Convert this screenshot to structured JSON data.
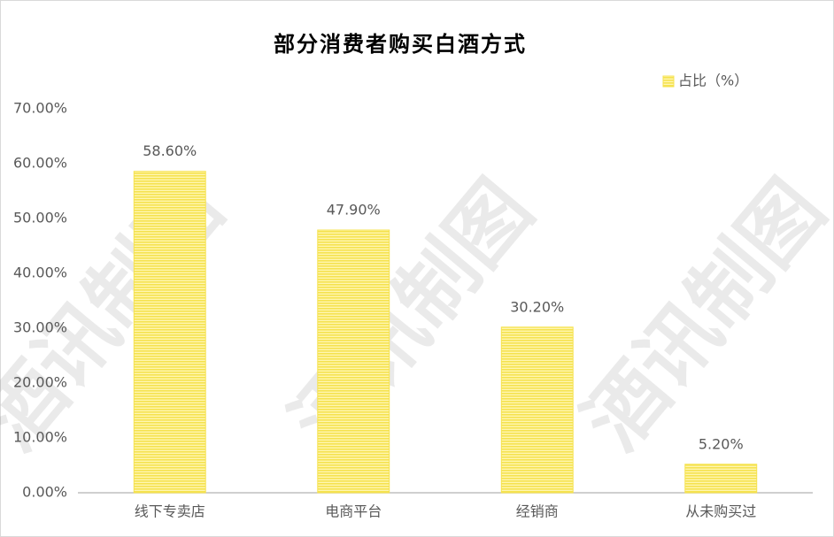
{
  "chart_data": {
    "type": "bar",
    "title": "部分消费者购买白酒方式",
    "categories": [
      "线下专卖店",
      "电商平台",
      "经销商",
      "从未购买过"
    ],
    "series": [
      {
        "name": "占比（%）",
        "color": "#f5e24f",
        "values": [
          58.6,
          47.9,
          30.2,
          5.2
        ],
        "value_labels": [
          "58.60%",
          "47.90%",
          "30.20%",
          "5.20%"
        ]
      }
    ],
    "ylim": [
      0,
      70
    ],
    "yticks": [
      {
        "value": 0,
        "label": "0.00%"
      },
      {
        "value": 10,
        "label": "10.00%"
      },
      {
        "value": 20,
        "label": "20.00%"
      },
      {
        "value": 30,
        "label": "30.00%"
      },
      {
        "value": 40,
        "label": "40.00%"
      },
      {
        "value": 50,
        "label": "50.00%"
      },
      {
        "value": 60,
        "label": "60.00%"
      },
      {
        "value": 70,
        "label": "70.00%"
      }
    ],
    "grid": false,
    "legend": "top-right",
    "watermark": "酒讯制图"
  }
}
